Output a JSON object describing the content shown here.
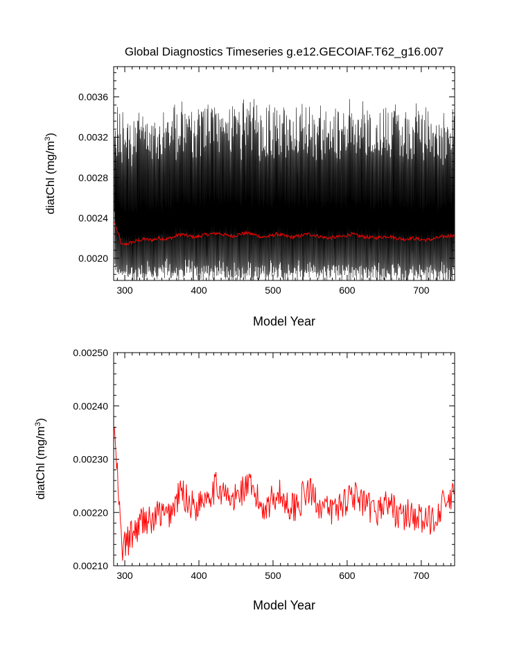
{
  "page": {
    "title": "Global Diagnostics Timeseries g.e12.GECOIAF.T62_g16.007"
  },
  "colors": {
    "monthly_series": "#000000",
    "annual_series": "#ff0000",
    "axis": "#000000",
    "background": "#ffffff"
  },
  "chart_data": [
    {
      "type": "line",
      "panel": "top",
      "title": "Global Diagnostics Timeseries g.e12.GECOIAF.T62_g16.007",
      "xlabel": "Model Year",
      "ylabel_main": "diatChl (mg/m",
      "ylabel_sup": "3",
      "ylabel_close": ")",
      "xlim": [
        285,
        745
      ],
      "ylim": [
        0.00178,
        0.0039
      ],
      "xticks": [
        300,
        400,
        500,
        600,
        700
      ],
      "xtick_labels": [
        "300",
        "400",
        "500",
        "600",
        "700"
      ],
      "yticks": [
        0.002,
        0.0024,
        0.0028,
        0.0032,
        0.0036
      ],
      "ytick_labels": [
        "0.0020",
        "0.0024",
        "0.0028",
        "0.0032",
        "0.0036"
      ],
      "grid": false,
      "series": [
        {
          "role": "monthly",
          "color": "#000000",
          "description_values": "dense monthly values oscillating seasonally between about 0.0019 and 0.0035",
          "x_range": [
            286,
            745
          ],
          "seasonal_min_approx": 0.0019,
          "seasonal_max_approx": 0.0035
        },
        {
          "role": "annual-mean",
          "color": "#ff0000",
          "x_range": [
            286,
            745
          ]
        }
      ]
    },
    {
      "type": "line",
      "panel": "bottom",
      "xlabel": "Model Year",
      "ylabel_main": "diatChl (mg/m",
      "ylabel_sup": "3",
      "ylabel_close": ")",
      "xlim": [
        285,
        745
      ],
      "ylim": [
        0.0021,
        0.0025
      ],
      "xticks": [
        300,
        400,
        500,
        600,
        700
      ],
      "xtick_labels": [
        "300",
        "400",
        "500",
        "600",
        "700"
      ],
      "yticks": [
        0.0021,
        0.0022,
        0.0023,
        0.0024,
        0.0025
      ],
      "ytick_labels": [
        "0.00210",
        "0.00220",
        "0.00230",
        "0.00240",
        "0.00250"
      ],
      "grid": false,
      "series": [
        {
          "role": "annual-mean",
          "color": "#ff0000",
          "x_start": 286,
          "x_step": 10,
          "y": [
            0.00236,
            0.00213,
            0.00215,
            0.00217,
            0.00219,
            0.00218,
            0.0022,
            0.00219,
            0.00221,
            0.00224,
            0.00222,
            0.00221,
            0.00223,
            0.00224,
            0.00225,
            0.00223,
            0.00222,
            0.00224,
            0.00225,
            0.00223,
            0.00221,
            0.00222,
            0.00224,
            0.00222,
            0.00221,
            0.00222,
            0.00224,
            0.00223,
            0.00221,
            0.0022,
            0.00221,
            0.00222,
            0.00224,
            0.00222,
            0.00221,
            0.0022,
            0.00221,
            0.00222,
            0.0022,
            0.00219,
            0.0022,
            0.00219,
            0.00218,
            0.00219,
            0.00221,
            0.00222,
            0.00223
          ]
        }
      ]
    }
  ]
}
